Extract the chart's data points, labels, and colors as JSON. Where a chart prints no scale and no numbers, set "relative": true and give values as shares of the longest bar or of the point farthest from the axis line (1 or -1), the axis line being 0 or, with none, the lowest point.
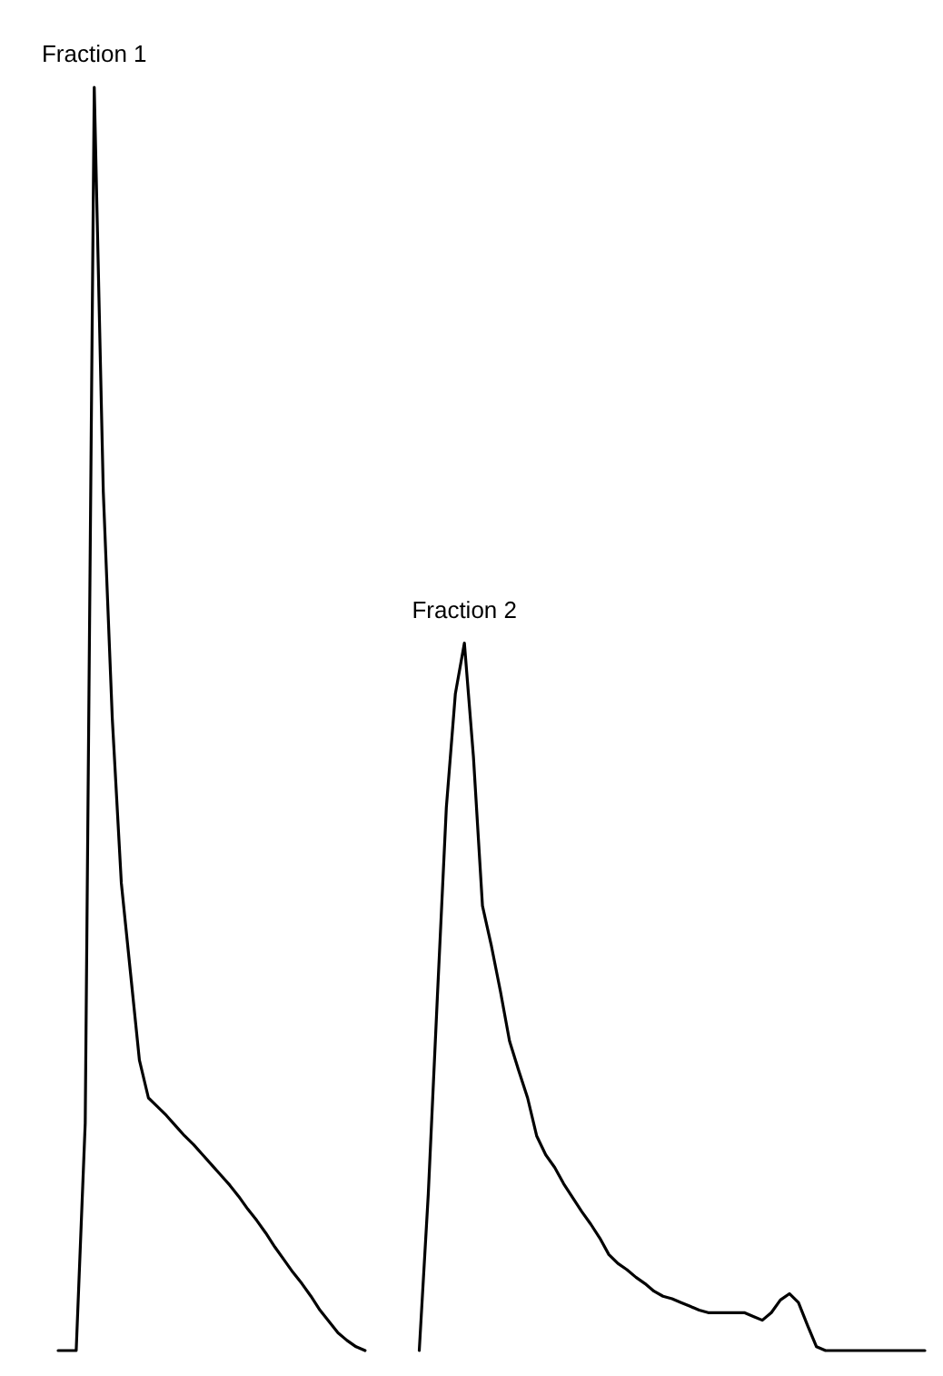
{
  "chart_data": {
    "type": "line",
    "relative": true,
    "line_style": "solid",
    "annotations": [
      "Fraction 1",
      "Fraction 2"
    ],
    "categories": [
      null,
      null,
      null,
      null,
      null,
      null,
      null,
      null,
      null,
      null,
      null,
      null,
      null,
      null,
      null,
      null,
      null,
      null,
      null,
      null,
      null,
      null,
      null,
      null,
      null,
      null,
      null,
      null,
      null,
      null,
      null,
      null,
      null,
      null,
      null,
      null,
      null,
      null,
      null,
      null,
      null,
      null,
      null,
      null,
      null,
      null,
      null,
      null,
      null,
      null,
      null,
      null,
      null,
      null,
      null,
      null,
      null,
      null,
      null,
      null,
      null,
      null,
      null,
      null,
      null,
      null,
      null,
      null,
      null,
      null,
      null,
      null,
      null,
      null,
      null,
      null,
      null,
      null,
      null,
      null,
      null,
      null,
      null,
      null,
      null,
      null,
      null,
      null,
      null,
      null,
      null,
      null,
      null,
      null,
      null,
      null,
      null
    ],
    "series": [
      {
        "color": "#000000",
        "values": [
          0,
          0,
          0,
          0.18,
          1,
          0.68,
          0.5,
          0.37,
          0.3,
          0.23,
          0.2,
          0.193,
          0.186,
          0.178,
          0.17,
          0.163,
          0.155,
          0.147,
          0.139,
          0.131,
          0.122,
          0.112,
          0.103,
          0.093,
          0.082,
          0.072,
          0.062,
          0.053,
          0.043,
          0.032,
          0.023,
          0.014,
          0.008,
          0.003,
          0,
          null,
          null,
          null,
          null,
          null,
          null,
          null,
          null,
          null,
          null,
          null,
          null,
          null,
          null,
          null,
          null,
          null,
          null,
          null,
          null,
          null,
          null,
          null,
          null,
          null,
          null,
          null,
          null,
          null,
          null,
          null,
          null,
          null,
          null,
          null,
          null,
          null,
          null,
          null,
          null,
          null,
          null,
          null,
          null,
          null,
          null,
          null,
          null,
          null,
          null,
          null,
          null,
          null,
          null,
          null,
          null,
          null,
          null,
          null,
          null,
          null,
          null
        ]
      },
      {
        "color": "#000000",
        "values": [
          null,
          null,
          null,
          null,
          null,
          null,
          null,
          null,
          null,
          null,
          null,
          null,
          null,
          null,
          null,
          null,
          null,
          null,
          null,
          null,
          null,
          null,
          null,
          null,
          null,
          null,
          null,
          null,
          null,
          null,
          null,
          null,
          null,
          null,
          null,
          null,
          null,
          null,
          null,
          null,
          0,
          0.124,
          0.279,
          0.43,
          0.52,
          0.56,
          0.47,
          0.352,
          0.32,
          0.284,
          0.245,
          0.222,
          0.2,
          0.17,
          0.155,
          0.145,
          0.132,
          0.121,
          0.11,
          0.1,
          0.089,
          0.076,
          0.069,
          0.064,
          0.058,
          0.053,
          0.047,
          0.043,
          0.041,
          0.038,
          0.035,
          0.032,
          0.03,
          0.03,
          0.03,
          0.03,
          0.03,
          0.027,
          0.024,
          0.03,
          0.04,
          0.045,
          0.038,
          0.02,
          0.003,
          0,
          0,
          0,
          0,
          0,
          0,
          0,
          0,
          0,
          0,
          0,
          0
        ]
      }
    ]
  }
}
